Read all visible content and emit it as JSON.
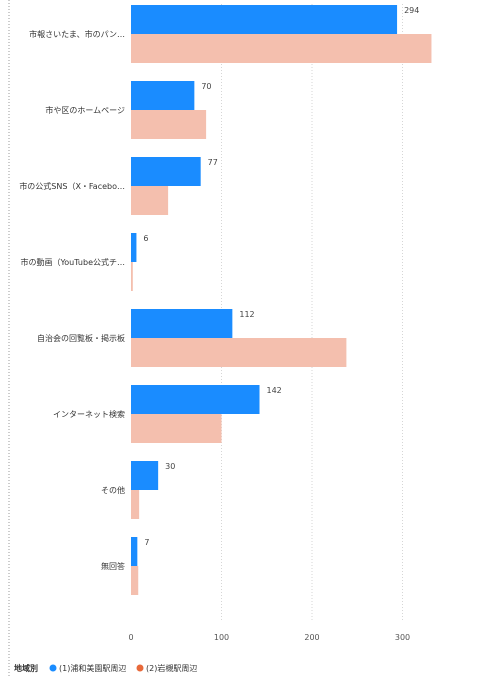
{
  "chart_data": {
    "type": "bar",
    "orientation": "horizontal",
    "categories": [
      "市報さいたま、市のパン…",
      "市や区のホームページ",
      "市の公式SNS（X・Facebo…",
      "市の動画（YouTube公式チ…",
      "自治会の回覧板・掲示板",
      "インターネット検索",
      "その他",
      "無回答"
    ],
    "series": [
      {
        "name": "(1)浦和美園駅周辺",
        "color": "#1a8cff",
        "values": [
          294,
          70,
          77,
          6,
          112,
          142,
          30,
          7
        ],
        "data_labels": [
          "294",
          "70",
          "77",
          "6",
          "112",
          "142",
          "30",
          "7"
        ]
      },
      {
        "name": "(2)岩槻駅周辺",
        "color": "#f4bfae",
        "values": [
          332,
          83,
          41,
          2,
          238,
          100,
          9,
          8
        ]
      }
    ],
    "x_ticks": [
      "0",
      "100",
      "200",
      "300"
    ],
    "xlim": [
      0,
      340
    ],
    "grid": true,
    "legend": {
      "position": "bottom-left",
      "title": "地域別",
      "marker_colors": [
        "#1a8cff",
        "#e8693a"
      ]
    }
  }
}
